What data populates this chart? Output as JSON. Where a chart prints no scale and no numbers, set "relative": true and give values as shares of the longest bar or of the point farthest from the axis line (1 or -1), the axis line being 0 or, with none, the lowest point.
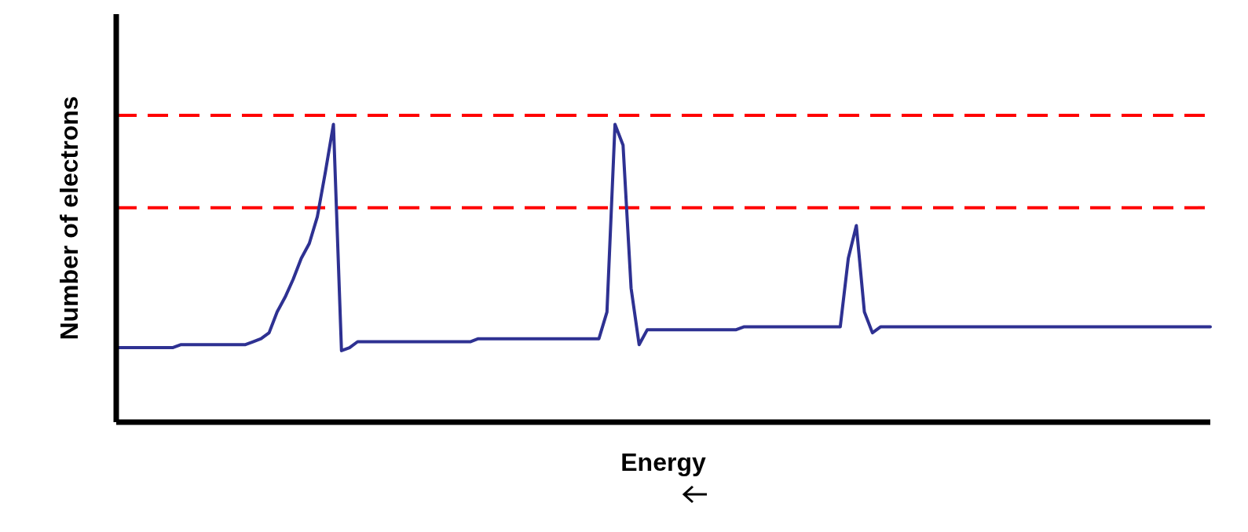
{
  "chart_data": {
    "type": "line",
    "xlabel": "Energy",
    "ylabel": "Number of electrons",
    "relative": true,
    "marker": "none",
    "line_style": "solid",
    "color": "#2e3192",
    "categories": [
      null,
      null,
      null,
      null,
      null,
      null,
      null,
      null,
      null,
      null,
      null,
      null,
      null,
      null,
      null,
      null,
      null,
      null,
      null,
      null,
      null,
      null,
      null,
      null,
      null,
      null,
      null,
      null,
      null,
      null,
      null,
      null,
      null,
      null,
      null,
      null,
      null,
      null,
      null,
      null,
      null,
      null,
      null,
      null,
      null,
      null,
      null,
      null,
      null,
      null,
      null,
      null,
      null,
      null,
      null,
      null,
      null,
      null,
      null,
      null,
      null,
      null,
      null,
      null,
      null,
      null,
      null,
      null,
      null,
      null,
      null,
      null,
      null,
      null,
      null,
      null,
      null,
      null,
      null,
      null,
      null,
      null,
      null,
      null,
      null,
      null,
      null,
      null,
      null,
      null,
      null,
      null,
      null,
      null,
      null,
      null,
      null,
      null,
      null,
      null,
      null,
      null,
      null,
      null,
      null,
      null,
      null,
      null,
      null,
      null,
      null,
      null,
      null,
      null,
      null,
      null,
      null,
      null,
      null,
      null,
      null,
      null,
      null,
      null,
      null,
      null,
      null,
      null,
      null,
      null,
      null,
      null,
      null,
      null,
      null,
      null,
      null
    ],
    "values": [
      0.25,
      0.25,
      0.25,
      0.25,
      0.25,
      0.25,
      0.25,
      0.25,
      0.26,
      0.26,
      0.26,
      0.26,
      0.26,
      0.26,
      0.26,
      0.26,
      0.26,
      0.27,
      0.28,
      0.3,
      0.37,
      0.42,
      0.48,
      0.55,
      0.6,
      0.69,
      0.84,
      1,
      0.24,
      0.25,
      0.27,
      0.27,
      0.27,
      0.27,
      0.27,
      0.27,
      0.27,
      0.27,
      0.27,
      0.27,
      0.27,
      0.27,
      0.27,
      0.27,
      0.27,
      0.28,
      0.28,
      0.28,
      0.28,
      0.28,
      0.28,
      0.28,
      0.28,
      0.28,
      0.28,
      0.28,
      0.28,
      0.28,
      0.28,
      0.28,
      0.28,
      0.37,
      1,
      0.93,
      0.45,
      0.26,
      0.31,
      0.31,
      0.31,
      0.31,
      0.31,
      0.31,
      0.31,
      0.31,
      0.31,
      0.31,
      0.31,
      0.31,
      0.32,
      0.32,
      0.32,
      0.32,
      0.32,
      0.32,
      0.32,
      0.32,
      0.32,
      0.32,
      0.32,
      0.32,
      0.32,
      0.55,
      0.66,
      0.37,
      0.3,
      0.32,
      0.32,
      0.32,
      0.32,
      0.32,
      0.32,
      0.32,
      0.32,
      0.32,
      0.32,
      0.32,
      0.32,
      0.32,
      0.32,
      0.32,
      0.32,
      0.32,
      0.32,
      0.32,
      0.32,
      0.32,
      0.32,
      0.32,
      0.32,
      0.32,
      0.32,
      0.32,
      0.32,
      0.32,
      0.32,
      0.32,
      0.32,
      0.32,
      0.32,
      0.32,
      0.32,
      0.32,
      0.32,
      0.32,
      0.32,
      0.32,
      0.32
    ],
    "ref_lines": [
      {
        "axis": "y",
        "value": 1.03,
        "color": "#ff0000",
        "line_style": "dashed"
      },
      {
        "axis": "y",
        "value": 0.72,
        "color": "#ff0000",
        "line_style": "dashed"
      }
    ]
  }
}
